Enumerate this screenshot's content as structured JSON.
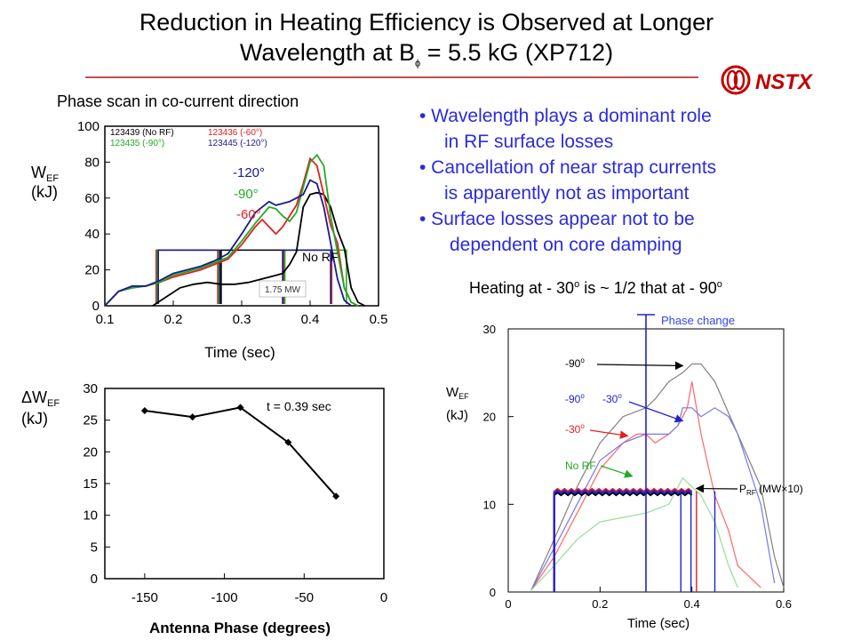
{
  "title": {
    "line1": "Reduction in Heating Efficiency is Observed at Longer",
    "line2_pre": "Wavelength at B",
    "line2_sub": "ϕ",
    "line2_post": " = 5.5 kG (XP712)"
  },
  "logo": {
    "text": "NSTX",
    "icon": "nstx-logo-icon",
    "color": "#c00000"
  },
  "left_caption": "Phase scan in co-current direction",
  "bullets": [
    {
      "line1": "•  Wavelength plays a dominant role",
      "line2": "in RF surface losses"
    },
    {
      "line1": "•  Cancellation of near strap currents",
      "line2": "is apparently not as important"
    },
    {
      "line1": "•   Surface losses appear not to be",
      "line2": "dependent on core damping"
    }
  ],
  "heating_note": {
    "pre": "Heating at - 30",
    "sup1": "o",
    "mid": " is ~ 1/2 that at - 90",
    "sup2": "o"
  },
  "colors": {
    "accent_blue": "#2b2bdd",
    "red": "#e02020",
    "green": "#22aa22",
    "navy": "#1a1a8c",
    "black": "#000000",
    "gray": "#808080"
  },
  "chart_data": [
    {
      "type": "line",
      "ylabel_main": "W",
      "ylabel_sub": "EF",
      "ylabel_unit": "(kJ)",
      "xlabel": "Time (sec)",
      "xlim": [
        0.1,
        0.5
      ],
      "ylim": [
        0,
        100
      ],
      "xticks": [
        "0.1",
        "0.2",
        "0.3",
        "0.4",
        "0.5"
      ],
      "yticks": [
        "0",
        "20",
        "40",
        "60",
        "80",
        "100"
      ],
      "legend": [
        {
          "text": "123439 (No RF)",
          "color": "#000000"
        },
        {
          "text": "123436 (-60°)",
          "color": "#e02020"
        },
        {
          "text": "123435 (-90°)",
          "color": "#22aa22"
        },
        {
          "text": "123445 (-120°)",
          "color": "#1a1a8c"
        }
      ],
      "annotations": {
        "a120": "-120°",
        "a90": "-90°",
        "a60": "-60°",
        "norf": "No RF",
        "power": "1.75 MW"
      },
      "series": [
        {
          "name": "123439 (No RF)",
          "color": "#000000",
          "x": [
            0.17,
            0.19,
            0.21,
            0.23,
            0.25,
            0.27,
            0.29,
            0.31,
            0.33,
            0.35,
            0.36,
            0.37,
            0.38,
            0.39,
            0.4,
            0.41,
            0.42,
            0.43,
            0.44,
            0.45,
            0.46,
            0.47,
            0.48
          ],
          "y": [
            0,
            5,
            10,
            12,
            13,
            12,
            12,
            13,
            15,
            17,
            18,
            23,
            30,
            55,
            62,
            63,
            62,
            55,
            42,
            32,
            10,
            2,
            0
          ]
        },
        {
          "name": "123436 (-60°)",
          "color": "#e02020",
          "x": [
            0.1,
            0.12,
            0.14,
            0.16,
            0.18,
            0.2,
            0.22,
            0.24,
            0.26,
            0.28,
            0.3,
            0.32,
            0.33,
            0.34,
            0.35,
            0.36,
            0.37,
            0.38,
            0.39,
            0.4,
            0.41,
            0.42,
            0.43,
            0.44,
            0.45,
            0.46,
            0.47
          ],
          "y": [
            0,
            8,
            10,
            11,
            13,
            16,
            18,
            20,
            23,
            26,
            34,
            44,
            48,
            44,
            40,
            44,
            50,
            56,
            68,
            82,
            78,
            62,
            45,
            35,
            10,
            2,
            0
          ]
        },
        {
          "name": "123435 (-90°)",
          "color": "#22aa22",
          "x": [
            0.1,
            0.12,
            0.14,
            0.16,
            0.18,
            0.2,
            0.22,
            0.24,
            0.26,
            0.28,
            0.3,
            0.32,
            0.34,
            0.35,
            0.36,
            0.37,
            0.38,
            0.39,
            0.4,
            0.41,
            0.42,
            0.43,
            0.44,
            0.45,
            0.46,
            0.47
          ],
          "y": [
            0,
            8,
            10,
            11,
            13,
            17,
            19,
            21,
            24,
            27,
            36,
            46,
            55,
            54,
            50,
            47,
            52,
            66,
            80,
            84,
            78,
            50,
            30,
            10,
            2,
            0
          ]
        },
        {
          "name": "123445 (-120°)",
          "color": "#1a1a8c",
          "x": [
            0.1,
            0.12,
            0.14,
            0.16,
            0.18,
            0.2,
            0.22,
            0.24,
            0.26,
            0.28,
            0.3,
            0.32,
            0.34,
            0.35,
            0.36,
            0.37,
            0.38,
            0.39,
            0.4,
            0.41,
            0.42,
            0.43,
            0.44,
            0.45,
            0.46
          ],
          "y": [
            0,
            8,
            11,
            11,
            14,
            18,
            20,
            22,
            25,
            29,
            40,
            52,
            58,
            56,
            57,
            58,
            60,
            62,
            70,
            68,
            55,
            35,
            15,
            3,
            0
          ]
        }
      ],
      "rf_power_windows": [
        {
          "color": "#e02020",
          "from": 0.175,
          "to": 0.265
        },
        {
          "color": "#22aa22",
          "from": 0.175,
          "to": 0.265
        },
        {
          "color": "#1a1a8c",
          "from": 0.175,
          "to": 0.265
        },
        {
          "color": "#000000",
          "from": 0.27,
          "to": 0.36
        },
        {
          "color": "#e02020",
          "from": 0.36,
          "to": 0.43
        },
        {
          "color": "#22aa22",
          "from": 0.36,
          "to": 0.45
        },
        {
          "color": "#1a1a8c",
          "from": 0.36,
          "to": 0.43
        }
      ]
    },
    {
      "type": "line",
      "ylabel_main": "ΔW",
      "ylabel_sub": "EF",
      "ylabel_unit": "(kJ)",
      "xlabel": "Antenna Phase (degrees)",
      "xlim": [
        -175,
        0
      ],
      "ylim": [
        0,
        30
      ],
      "xticks": [
        "-150",
        "-100",
        "-50",
        "0"
      ],
      "yticks": [
        "0",
        "5",
        "10",
        "15",
        "20",
        "25",
        "30"
      ],
      "annotation": "t = 0.39 sec",
      "x": [
        -150,
        -120,
        -90,
        -60,
        -30
      ],
      "y": [
        26.5,
        25.5,
        27,
        21.5,
        13
      ]
    },
    {
      "type": "line",
      "ylabel_main": "W",
      "ylabel_sub": "EF",
      "ylabel_unit": "(kJ)",
      "xlabel": "Time (sec)",
      "xlim": [
        0,
        0.6
      ],
      "ylim": [
        0,
        30
      ],
      "xticks": [
        "0",
        "0.2",
        "0.4",
        "0.6"
      ],
      "yticks": [
        "0",
        "10",
        "20",
        "30"
      ],
      "annotations": {
        "phase_change": "Phase change",
        "lab90a": "-90",
        "lab90b": "-90",
        "lab30a": "-30",
        "lab30b": "-30",
        "sup": "o",
        "norf": "No RF",
        "prf_pre": "P",
        "prf_sub": "RF",
        "prf_post": " (MW×10)"
      },
      "phase_change_x": 0.3,
      "series": [
        {
          "name": "-90°",
          "color": "#808080",
          "x": [
            0.05,
            0.1,
            0.15,
            0.2,
            0.25,
            0.3,
            0.32,
            0.35,
            0.38,
            0.4,
            0.42,
            0.45,
            0.5,
            0.55,
            0.58,
            0.6
          ],
          "y": [
            0.2,
            6,
            12,
            17,
            20,
            21,
            22,
            24,
            25,
            26,
            26,
            24,
            18,
            12,
            4,
            0.5
          ]
        },
        {
          "name": "-30°",
          "color": "#ff6666",
          "x": [
            0.05,
            0.1,
            0.15,
            0.2,
            0.25,
            0.28,
            0.3,
            0.32,
            0.35,
            0.37,
            0.39,
            0.4,
            0.42,
            0.45,
            0.48,
            0.5,
            0.55
          ],
          "y": [
            0.2,
            4,
            9,
            14,
            17,
            18,
            18,
            17,
            18,
            19,
            21,
            24,
            18,
            11,
            7,
            3,
            0.5
          ]
        },
        {
          "name": "-90° -30°",
          "color": "#7777ee",
          "x": [
            0.05,
            0.1,
            0.15,
            0.2,
            0.25,
            0.3,
            0.35,
            0.37,
            0.38,
            0.39,
            0.4,
            0.42,
            0.45,
            0.48,
            0.5,
            0.55,
            0.58
          ],
          "y": [
            0.2,
            5,
            10,
            15,
            17,
            18,
            18,
            19,
            21,
            21,
            21,
            20,
            21,
            20,
            18,
            10,
            1
          ]
        },
        {
          "name": "No RF",
          "color": "#99dd99",
          "x": [
            0.05,
            0.1,
            0.15,
            0.2,
            0.25,
            0.3,
            0.35,
            0.38,
            0.4,
            0.42,
            0.45,
            0.48,
            0.5
          ],
          "y": [
            0.2,
            3,
            6,
            8,
            8.5,
            9,
            10,
            13,
            12,
            11,
            8,
            3,
            0.5
          ]
        }
      ],
      "power_series": [
        {
          "name": "P_RF black",
          "color": "#000000",
          "x_from": 0.1,
          "x_to": 0.4,
          "y": 11.2
        },
        {
          "name": "P_RF red",
          "color": "#e02020",
          "x_from": 0.1,
          "x_to": 0.4,
          "y": 11.6
        },
        {
          "name": "P_RF blue",
          "color": "#2222cc",
          "x_from": 0.1,
          "x_to": 0.4,
          "y": 11.4
        }
      ],
      "drop_lines": [
        {
          "color": "#2222cc",
          "x": 0.398
        },
        {
          "color": "#e02020",
          "x": 0.41
        },
        {
          "color": "#2222cc",
          "x": 0.45
        },
        {
          "color": "#2222cc",
          "x": 0.376
        }
      ]
    }
  ]
}
